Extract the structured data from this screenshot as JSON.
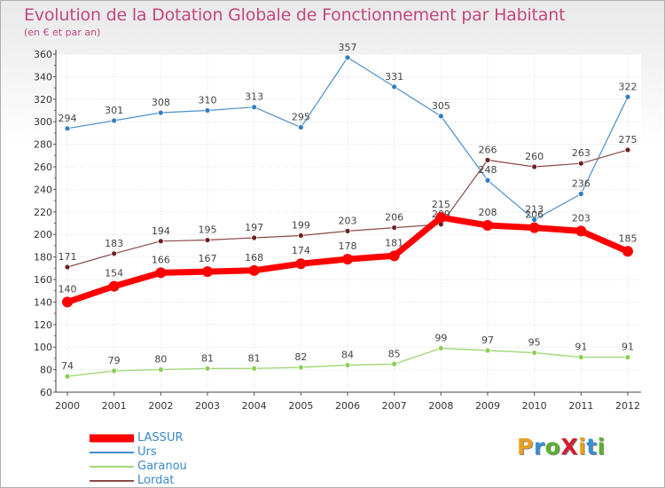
{
  "header": {
    "title": "Evolution de la Dotation Globale de Fonctionnement par Habitant",
    "subtitle": "(en € et par an)"
  },
  "logo": {
    "text": "ProXiti",
    "colors": [
      "#e8a020",
      "#3a8fd0",
      "#5ab030",
      "#d02030",
      "#e8a020",
      "#3a8fd0",
      "#5ab030"
    ]
  },
  "chart_data": {
    "type": "line",
    "title": "Evolution de la Dotation Globale de Fonctionnement par Habitant",
    "subtitle": "(en € et par an)",
    "xlabel": "",
    "ylabel": "",
    "x": [
      "2000",
      "2001",
      "2002",
      "2003",
      "2004",
      "2005",
      "2006",
      "2007",
      "2008",
      "2009",
      "2010",
      "2011",
      "2012"
    ],
    "ylim": [
      60,
      360
    ],
    "yticks": [
      60,
      80,
      100,
      120,
      140,
      160,
      180,
      200,
      220,
      240,
      260,
      280,
      300,
      320,
      340,
      360
    ],
    "grid": true,
    "legend_position": "bottom-left",
    "series": [
      {
        "name": "Urs",
        "color": "#4a8fcb",
        "marker": "#2f7cc2",
        "width": 1.2,
        "r": 3,
        "values": [
          294,
          301,
          308,
          310,
          313,
          295,
          357,
          331,
          305,
          248,
          213,
          236,
          322
        ]
      },
      {
        "name": "Lordat",
        "color": "#8a4a4a",
        "marker": "#6e1f1f",
        "width": 1.2,
        "r": 3,
        "values": [
          171,
          183,
          194,
          195,
          197,
          199,
          203,
          206,
          209,
          266,
          260,
          263,
          275
        ]
      },
      {
        "name": "Garanou",
        "color": "#a3d87a",
        "marker": "#8ccf55",
        "width": 1.4,
        "r": 3,
        "values": [
          74,
          79,
          80,
          81,
          81,
          82,
          84,
          85,
          99,
          97,
          95,
          91,
          91
        ]
      },
      {
        "name": "LASSUR",
        "color": "#ff0000",
        "marker": "#ff0000",
        "width": 7,
        "r": 6,
        "values": [
          140,
          154,
          166,
          167,
          168,
          174,
          178,
          181,
          215,
          208,
          206,
          203,
          185
        ]
      }
    ],
    "legend_order": [
      "LASSUR",
      "Urs",
      "Garanou",
      "Lordat"
    ]
  }
}
